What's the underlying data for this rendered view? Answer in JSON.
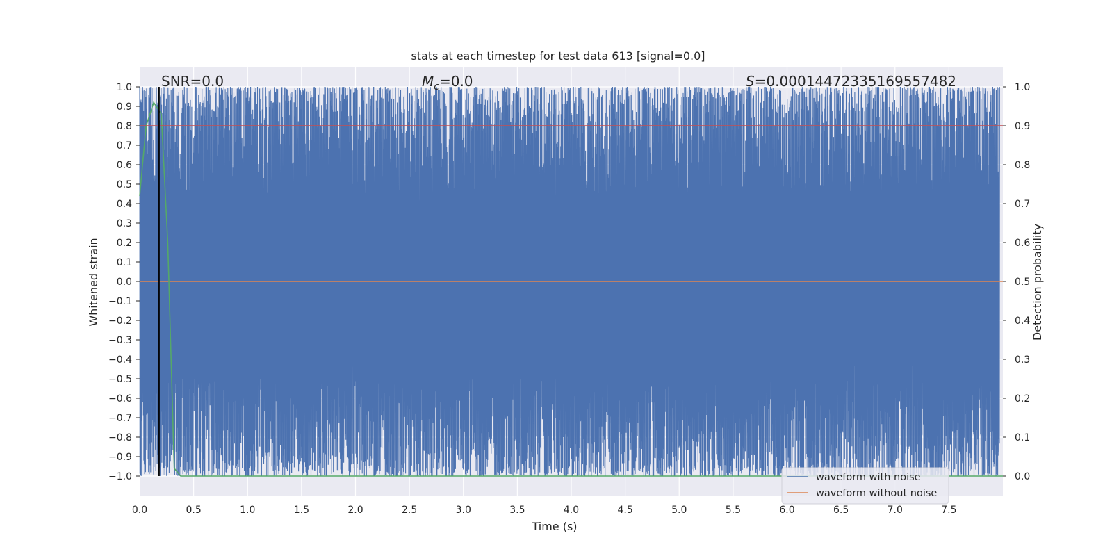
{
  "chart_data": {
    "type": "line",
    "title": "stats at each timestep for test data 613 [signal=0.0]",
    "xlabel": "Time (s)",
    "ylabel_left": "Whitened strain",
    "ylabel_right": "Detection probability",
    "xlim": [
      0.0,
      8.0
    ],
    "ylim_left": [
      -1.1,
      1.1
    ],
    "ylim_right": [
      -0.05,
      1.05
    ],
    "x_ticks": [
      "0.0",
      "0.5",
      "1.0",
      "1.5",
      "2.0",
      "2.5",
      "3.0",
      "3.5",
      "4.0",
      "4.5",
      "5.0",
      "5.5",
      "6.0",
      "6.5",
      "7.0",
      "7.5"
    ],
    "y_ticks_left": [
      "1.0",
      "0.9",
      "0.8",
      "0.7",
      "0.6",
      "0.5",
      "0.4",
      "0.3",
      "0.2",
      "0.1",
      "0.0",
      "−0.1",
      "−0.2",
      "−0.3",
      "−0.4",
      "−0.5",
      "−0.6",
      "−0.7",
      "−0.8",
      "−0.9",
      "−1.0"
    ],
    "y_ticks_right": [
      "1.0",
      "0.9",
      "0.8",
      "0.7",
      "0.6",
      "0.5",
      "0.4",
      "0.3",
      "0.2",
      "0.1",
      "0.0"
    ],
    "grid": true,
    "legend_position": "lower-right",
    "annotations": {
      "snr": "SNR=0.0",
      "mc_symbol": "M",
      "mc_subscript": "c",
      "mc_value": "=0.0",
      "s_symbol": "S",
      "s_value": "=0.00014472335169557482"
    },
    "series": [
      {
        "name": "waveform with noise",
        "color": "#4c72b0",
        "kind": "noise",
        "range": [
          -1.0,
          1.0
        ]
      },
      {
        "name": "waveform without noise",
        "color": "#dd8452",
        "x": [
          0.0,
          8.0
        ],
        "y": [
          0.0,
          0.0
        ]
      },
      {
        "color": "#55a868",
        "axis": "right",
        "x": [
          0.0,
          0.06,
          0.13,
          0.2,
          0.26,
          0.32,
          0.38,
          0.5,
          1.0,
          2.0,
          4.0,
          6.0,
          8.0
        ],
        "y": [
          0.72,
          0.9,
          0.96,
          0.93,
          0.6,
          0.02,
          0.0,
          0.0,
          0.0,
          0.0,
          0.0,
          0.0,
          0.0
        ]
      },
      {
        "color": "#c44e52",
        "axis": "right",
        "x": [
          0.0,
          8.0
        ],
        "y": [
          0.9,
          0.9
        ]
      }
    ],
    "vertical_marker": {
      "x": 0.18,
      "color": "#000000"
    }
  }
}
